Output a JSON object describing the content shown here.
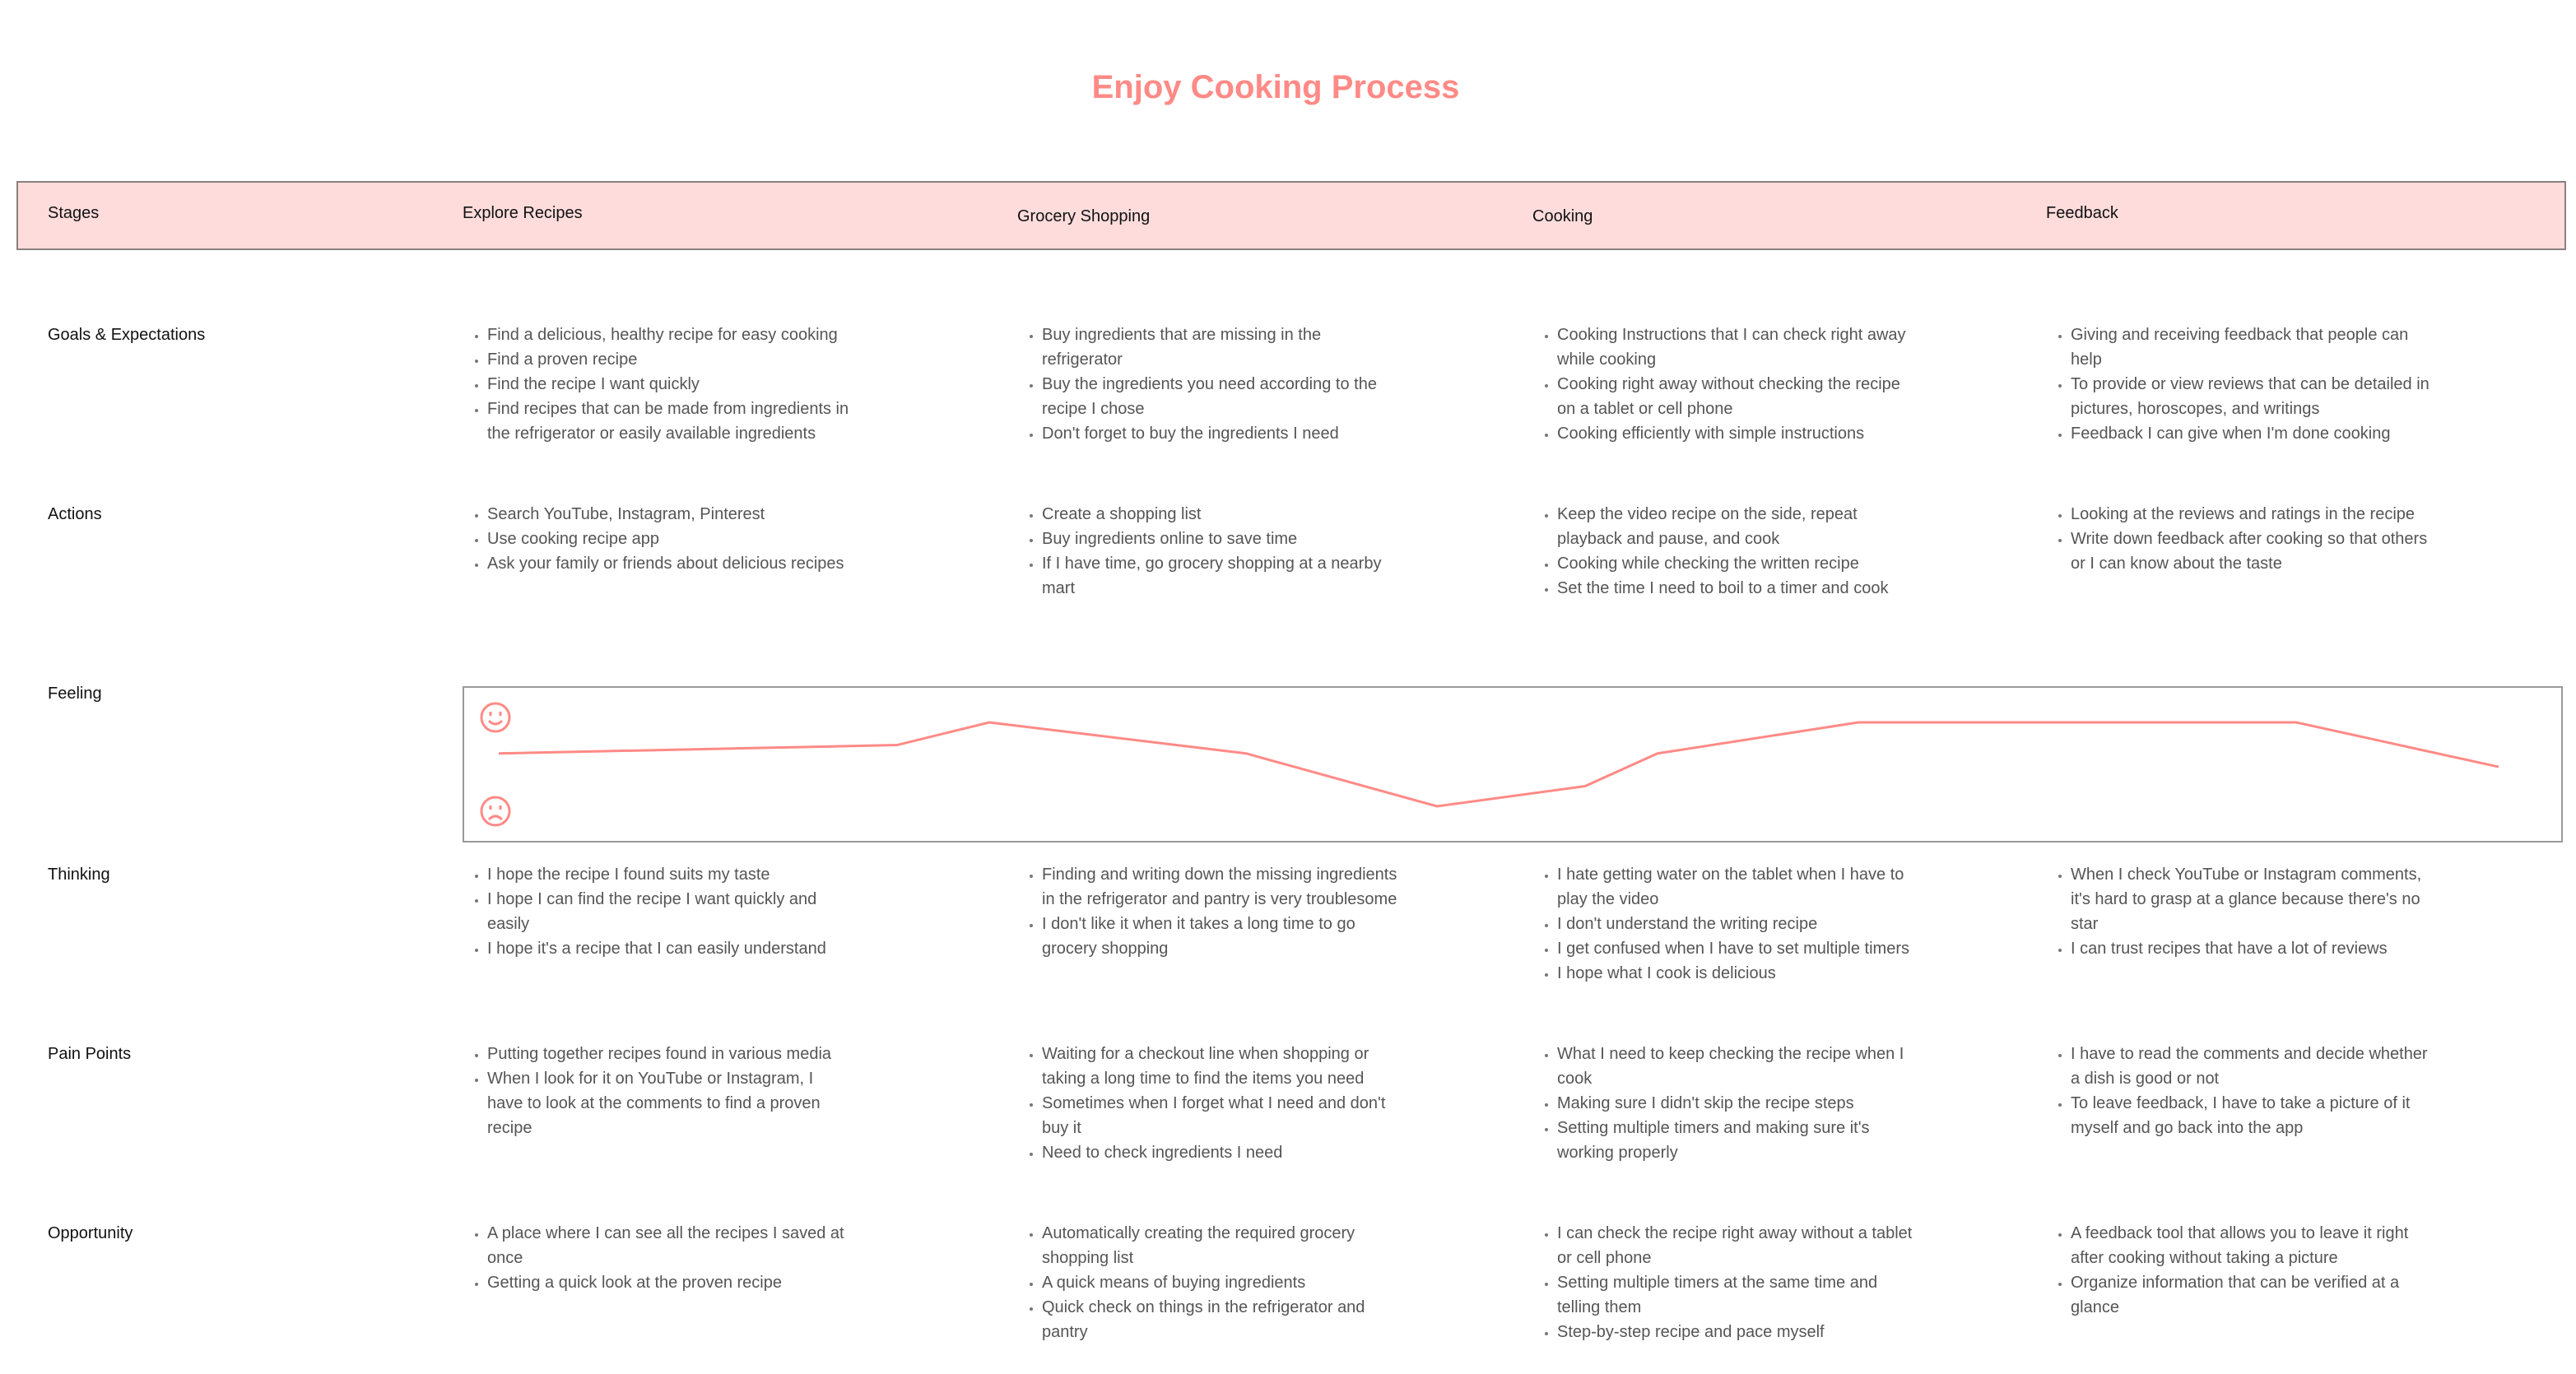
{
  "title": "Enjoy Cooking Process",
  "accent_color": "#ff8a86",
  "header_color": "#ffdcdc",
  "header": {
    "label": "Stages",
    "stages": [
      "Explore Recipes",
      "Grocery Shopping",
      "Cooking",
      "Feedback"
    ]
  },
  "rows": [
    {
      "label": "Goals & Expectations",
      "columns": [
        [
          "Find a delicious, healthy recipe for easy cooking",
          "Find a proven recipe",
          "Find the recipe I want quickly",
          "Find recipes that can be made from ingredients in the refrigerator or easily available ingredients"
        ],
        [
          "Buy ingredients that are missing in the refrigerator",
          "Buy the ingredients you need according to the recipe I chose",
          "Don't forget to buy the ingredients I need"
        ],
        [
          "Cooking Instructions that I can check right away while cooking",
          "Cooking right away without checking the recipe on a tablet or cell phone",
          "Cooking efficiently with simple instructions"
        ],
        [
          "Giving and receiving feedback that people can help",
          "To provide or view reviews that can be detailed in pictures, horoscopes, and writings",
          "Feedback I can give when I'm done cooking"
        ]
      ]
    },
    {
      "label": "Actions",
      "columns": [
        [
          "Search YouTube, Instagram, Pinterest",
          "Use cooking recipe app",
          "Ask your family or friends about delicious recipes"
        ],
        [
          "Create a shopping list",
          "Buy ingredients online to save time",
          "If I have time, go grocery shopping at a nearby mart"
        ],
        [
          "Keep the video recipe on the side, repeat playback and pause, and cook",
          "Cooking while checking the written recipe",
          "Set the time I need to boil to a timer and cook"
        ],
        [
          "Looking at the reviews and ratings in the recipe",
          "Write down feedback after cooking so that others or I can know about the taste"
        ]
      ]
    },
    {
      "label": "Feeling",
      "chart": true
    },
    {
      "label": "Thinking",
      "columns": [
        [
          "I hope the recipe I found suits my taste",
          "I hope I can find the recipe I want quickly and easily",
          "I hope it's a recipe that I can easily understand"
        ],
        [
          "Finding and writing down the missing ingredients in the refrigerator and pantry is very troublesome",
          "I don't like it when it takes a long time to go grocery shopping"
        ],
        [
          "I hate getting water on the tablet when I have to play the video",
          "I don't understand the writing recipe",
          "I get confused when I have to set multiple timers",
          "I hope what I cook is delicious"
        ],
        [
          "When I check YouTube or Instagram comments, it's hard to grasp at a glance because there's no star",
          "I can trust recipes that have a lot of reviews"
        ]
      ]
    },
    {
      "label": "Pain Points",
      "columns": [
        [
          "Putting together recipes found in various media",
          "When I look for it on YouTube or Instagram, I have to look at the comments to find a proven recipe"
        ],
        [
          "Waiting for a checkout line when shopping or taking a long time to find the items you need",
          "Sometimes when I forget what I need and don't buy it",
          "Need to check ingredients I need"
        ],
        [
          "What I need to keep checking the recipe when I cook",
          "Making sure I didn't skip the recipe steps",
          "Setting multiple timers and making sure it's working properly"
        ],
        [
          "I have to read the comments and decide whether a dish is good or not",
          "To leave feedback, I have to take a picture of it myself and go back into the app"
        ]
      ]
    },
    {
      "label": "Opportunity",
      "columns": [
        [
          "A place where I can see all the recipes I saved at once",
          "Getting a quick look at the proven recipe"
        ],
        [
          "Automatically creating the required grocery shopping list",
          "A quick means of buying ingredients",
          "Quick check on things in the refrigerator and pantry"
        ],
        [
          "I can check the recipe right away without a tablet or cell phone",
          "Setting multiple timers at the same time and telling them",
          "Step-by-step recipe and pace myself"
        ],
        [
          "A feedback tool that allows you to leave it right after cooking without taking a picture",
          "Organize information that can be verified at a glance"
        ]
      ]
    }
  ],
  "feeling": {
    "icons": [
      "smile-icon",
      "frown-icon"
    ],
    "line_color": "#ff8a86",
    "scale": [
      0,
      10
    ],
    "values": [
      6.3,
      7.3,
      10,
      6.3,
      0,
      2.4,
      6.3,
      10,
      10,
      4.7
    ]
  }
}
